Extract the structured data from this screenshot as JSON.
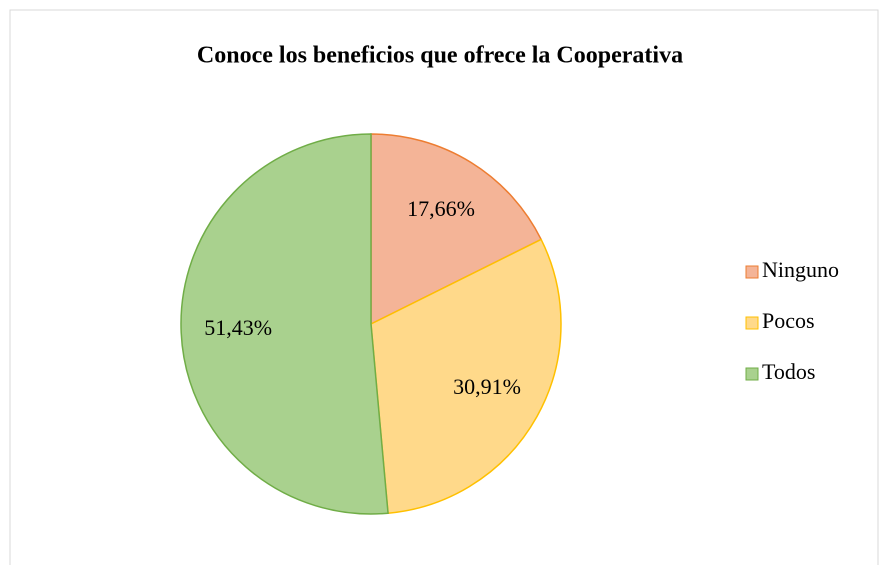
{
  "chart_data": {
    "type": "pie",
    "title": "Conoce los beneficios que ofrece la Cooperativa",
    "categories": [
      "Ninguno",
      "Pocos",
      "Todos"
    ],
    "values": [
      17.66,
      30.91,
      51.43
    ],
    "value_labels": [
      "17,66%",
      "30,91%",
      "51,43%"
    ],
    "colors": [
      "#f4b497",
      "#ffd98a",
      "#a9d18e"
    ],
    "edge_colors": [
      "#ed7d31",
      "#ffc000",
      "#70ad47"
    ],
    "legend": "right"
  }
}
